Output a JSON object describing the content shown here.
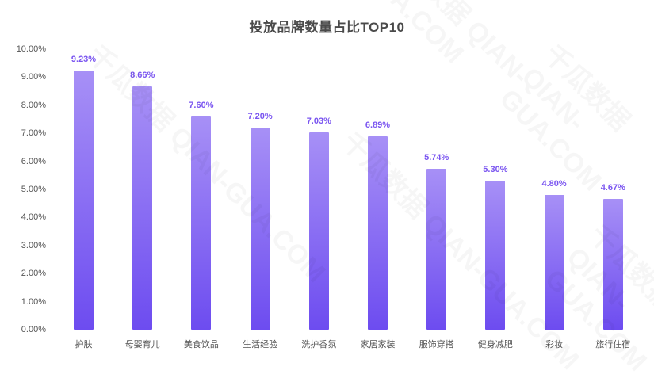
{
  "chart_data": {
    "type": "bar",
    "title": "投放品牌数量占比TOP10",
    "xlabel": "",
    "ylabel": "",
    "ylim": [
      0,
      10
    ],
    "y_ticks": [
      "0.00%",
      "1.00%",
      "2.00%",
      "3.00%",
      "4.00%",
      "5.00%",
      "6.00%",
      "7.00%",
      "8.00%",
      "9.00%",
      "10.00%"
    ],
    "grid": false,
    "legend": null,
    "categories": [
      "护肤",
      "母婴育儿",
      "美食饮品",
      "生活经验",
      "洗护香氛",
      "家居家装",
      "服饰穿搭",
      "健身减肥",
      "彩妆",
      "旅行住宿"
    ],
    "values": [
      9.23,
      8.66,
      7.6,
      7.2,
      7.03,
      6.89,
      5.74,
      5.3,
      4.8,
      4.67
    ],
    "value_labels": [
      "9.23%",
      "8.66%",
      "7.60%",
      "7.20%",
      "7.03%",
      "6.89%",
      "5.74%",
      "5.30%",
      "4.80%",
      "4.67%"
    ],
    "colors": {
      "bar_top": "#a790f6",
      "bar_bottom": "#6d4cf0",
      "value_label": "#7a55f0"
    }
  },
  "watermark": "千瓜数据 QIAN-GUA.COM"
}
